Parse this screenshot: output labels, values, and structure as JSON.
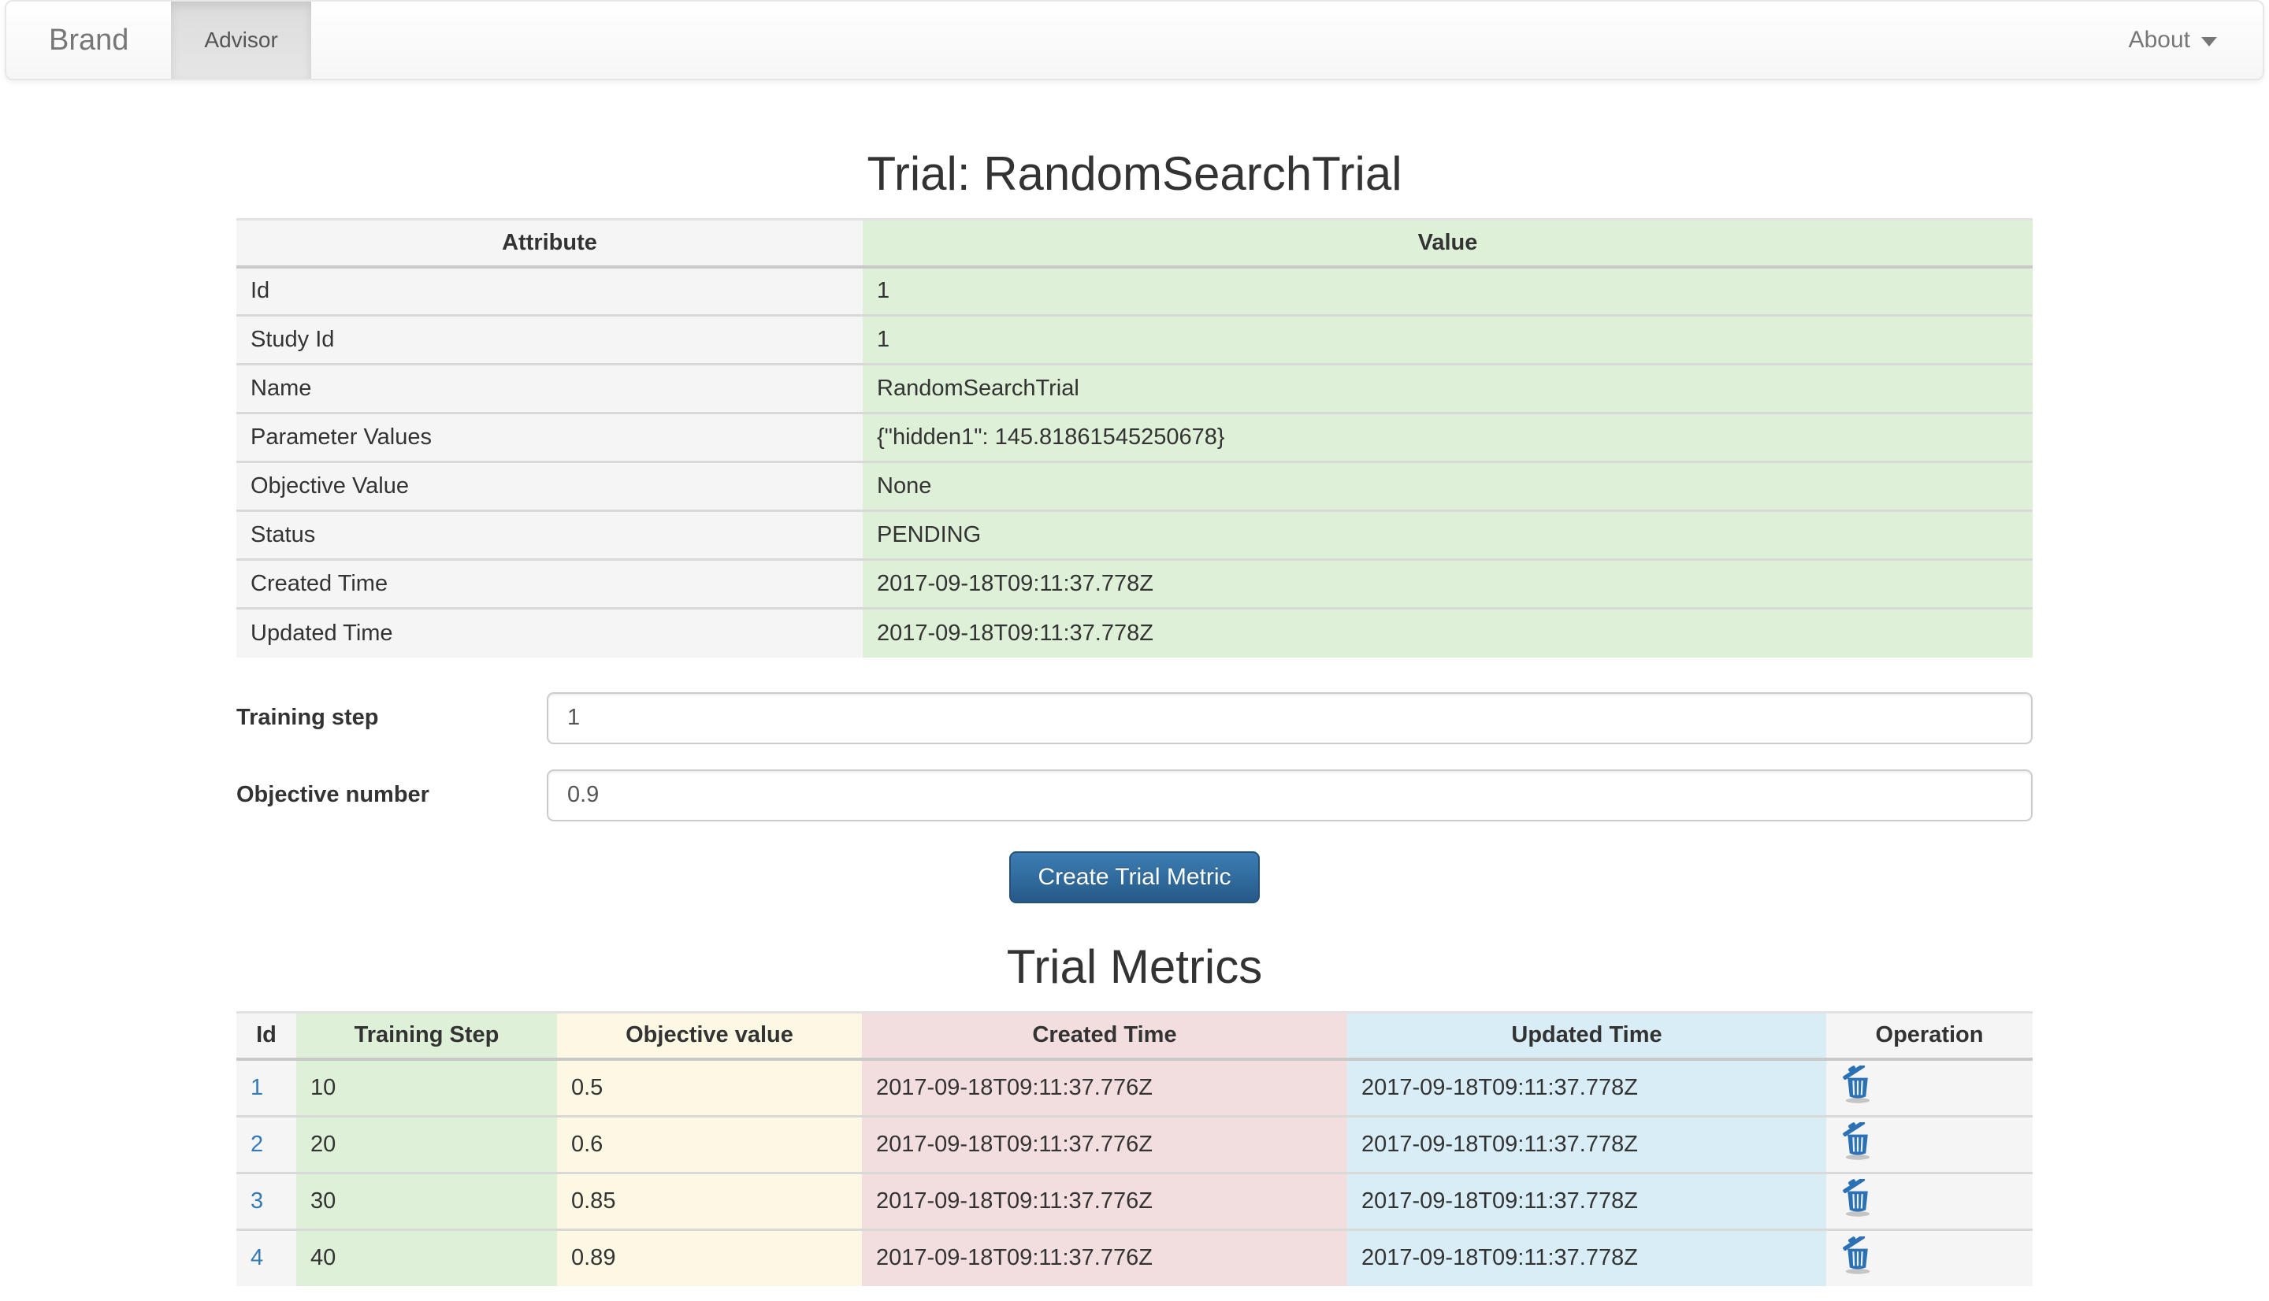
{
  "navbar": {
    "brand": "Brand",
    "advisor_tab": "Advisor",
    "about": "About"
  },
  "page_title": "Trial: RandomSearchTrial",
  "attribute_table": {
    "headers": [
      "Attribute",
      "Value"
    ],
    "rows": [
      {
        "attribute": "Id",
        "value": "1"
      },
      {
        "attribute": "Study Id",
        "value": "1"
      },
      {
        "attribute": "Name",
        "value": "RandomSearchTrial"
      },
      {
        "attribute": "Parameter Values",
        "value": "{\"hidden1\": 145.81861545250678}"
      },
      {
        "attribute": "Objective Value",
        "value": "None"
      },
      {
        "attribute": "Status",
        "value": "PENDING"
      },
      {
        "attribute": "Created Time",
        "value": "2017-09-18T09:11:37.778Z"
      },
      {
        "attribute": "Updated Time",
        "value": "2017-09-18T09:11:37.778Z"
      }
    ]
  },
  "form": {
    "training_step_label": "Training step",
    "training_step_value": "1",
    "objective_number_label": "Objective number",
    "objective_number_value": "0.9",
    "submit_label": "Create Trial Metric"
  },
  "metrics": {
    "title": "Trial Metrics",
    "headers": [
      "Id",
      "Training Step",
      "Objective value",
      "Created Time",
      "Updated Time",
      "Operation"
    ],
    "operation_icon": "trash-icon",
    "rows": [
      {
        "id": "1",
        "training_step": "10",
        "objective_value": "0.5",
        "created_time": "2017-09-18T09:11:37.776Z",
        "updated_time": "2017-09-18T09:11:37.778Z"
      },
      {
        "id": "2",
        "training_step": "20",
        "objective_value": "0.6",
        "created_time": "2017-09-18T09:11:37.776Z",
        "updated_time": "2017-09-18T09:11:37.778Z"
      },
      {
        "id": "3",
        "training_step": "30",
        "objective_value": "0.85",
        "created_time": "2017-09-18T09:11:37.776Z",
        "updated_time": "2017-09-18T09:11:37.778Z"
      },
      {
        "id": "4",
        "training_step": "40",
        "objective_value": "0.89",
        "created_time": "2017-09-18T09:11:37.776Z",
        "updated_time": "2017-09-18T09:11:37.778Z"
      }
    ]
  },
  "colors": {
    "link_accent": "#337ab7",
    "button_top": "#3c7db3",
    "button_bottom": "#265a88",
    "success_bg": "#dff0d8",
    "warning_bg": "#fcf8e3",
    "danger_bg": "#f2dede",
    "info_bg": "#d9edf7",
    "muted_bg": "#f5f5f5"
  }
}
